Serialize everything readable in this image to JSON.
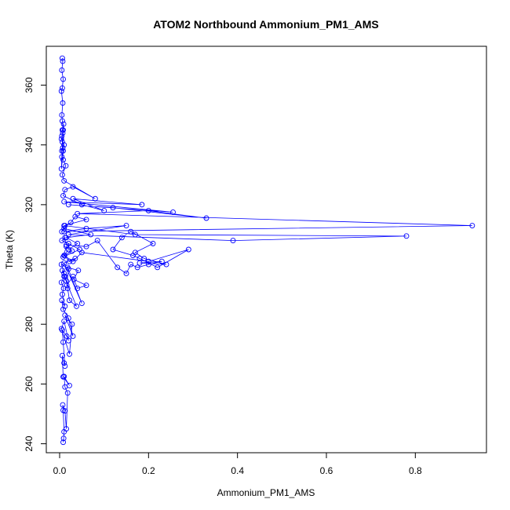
{
  "chart_data": {
    "type": "scatter",
    "title": "ATOM2 Northbound Ammonium_PM1_AMS",
    "xlabel": "Ammonium_PM1_AMS",
    "ylabel": "Theta (K)",
    "xlim": [
      -0.03,
      0.96
    ],
    "ylim": [
      237,
      373
    ],
    "xticks": [
      0.0,
      0.2,
      0.4,
      0.6,
      0.8
    ],
    "xtick_labels": [
      "0.0",
      "0.2",
      "0.4",
      "0.6",
      "0.8"
    ],
    "yticks": [
      240,
      260,
      280,
      300,
      320,
      340,
      360
    ],
    "ytick_labels": [
      "240",
      "260",
      "280",
      "300",
      "320",
      "340",
      "360"
    ],
    "grid": false,
    "legend": "none",
    "style": "points and connecting lines (type='b')",
    "colors": {
      "series": "#0000ff",
      "axis": "#000000",
      "background": "#ffffff"
    },
    "series": [
      {
        "values_x": [
          0.008,
          0.009,
          0.01,
          0.008,
          0.007,
          0.012,
          0.015,
          0.018,
          0.012,
          0.01,
          0.022,
          0.008,
          0.006,
          0.01,
          0.012,
          0.008,
          0.006,
          0.016,
          0.02,
          0.01,
          0.004,
          0.022,
          0.028,
          0.012,
          0.03,
          0.02,
          0.008,
          0.005,
          0.012,
          0.006,
          0.009,
          0.004,
          0.01,
          0.038,
          0.022,
          0.018,
          0.015,
          0.01,
          0.006,
          0.012,
          0.004,
          0.02,
          0.016,
          0.03,
          0.04,
          0.06,
          0.032,
          0.042,
          0.018,
          0.05,
          0.01,
          0.035,
          0.022,
          0.011,
          0.028,
          0.015,
          0.008,
          0.045,
          0.02,
          0.005,
          0.012,
          0.015,
          0.06,
          0.085,
          0.13,
          0.15,
          0.16,
          0.175,
          0.2,
          0.23,
          0.18,
          0.24,
          0.19,
          0.17,
          0.21,
          0.16,
          0.14,
          0.12,
          0.165,
          0.18,
          0.22,
          0.29,
          0.2,
          0.05,
          0.03,
          0.01,
          0.02,
          0.04,
          0.015,
          0.07,
          0.01,
          0.005,
          0.012,
          0.025,
          0.035,
          0.06,
          0.01,
          0.17,
          0.78,
          0.39,
          0.02,
          0.15,
          0.06,
          0.01,
          0.928,
          0.04,
          0.2,
          0.33,
          0.12,
          0.02,
          0.255,
          0.01,
          0.185,
          0.03,
          0.1,
          0.05,
          0.008,
          0.012,
          0.03,
          0.08,
          0.01,
          0.006,
          0.014,
          0.008,
          0.005,
          0.01,
          0.004,
          0.007,
          0.006,
          0.009,
          0.005,
          0.004,
          0.008,
          0.006,
          0.005,
          0.007,
          0.008,
          0.006,
          0.005,
          0.007,
          0.004,
          0.006,
          0.008,
          0.005,
          0.007,
          0.006
        ],
        "values_y": [
          240.5,
          241.8,
          244.0,
          251.2,
          253.0,
          251.0,
          245.0,
          257.0,
          259.0,
          262.5,
          259.5,
          262.4,
          269.5,
          267.0,
          266.0,
          274.0,
          278.0,
          276.0,
          274.5,
          281.0,
          278.5,
          270.0,
          280.0,
          283.0,
          276.0,
          282.0,
          285.0,
          288.0,
          286.0,
          290.0,
          292.0,
          294.0,
          296.0,
          286.0,
          288.0,
          292.0,
          294.5,
          297.0,
          298.0,
          296.0,
          300.0,
          298.5,
          293.0,
          296.0,
          292.0,
          293.0,
          295.0,
          298.0,
          299.0,
          287.0,
          300.5,
          302.0,
          301.0,
          303.0,
          304.5,
          306.0,
          302.5,
          305.0,
          307.0,
          308.0,
          309.0,
          306.5,
          306.0,
          308.0,
          299.0,
          297.0,
          300.0,
          299.0,
          300.0,
          301.0,
          300.5,
          300.0,
          302.0,
          304.0,
          307.0,
          311.0,
          309.0,
          305.0,
          303.0,
          302.0,
          299.0,
          305.0,
          301.0,
          304.0,
          301.0,
          303.0,
          305.0,
          307.0,
          309.0,
          310.0,
          312.0,
          311.0,
          313.0,
          314.0,
          316.0,
          315.0,
          313.0,
          310.0,
          309.5,
          308.0,
          310.0,
          313.0,
          312.0,
          311.0,
          313.0,
          317.0,
          318.0,
          315.5,
          319.0,
          320.0,
          317.5,
          321.0,
          320.0,
          322.0,
          318.0,
          320.0,
          323.0,
          325.0,
          326.0,
          322.0,
          328.0,
          330.0,
          333.0,
          335.0,
          338.0,
          340.0,
          342.0,
          344.0,
          345.0,
          347.0,
          336.0,
          332.0,
          338.0,
          341.0,
          343.0,
          339.0,
          345.0,
          348.0,
          350.0,
          354.0,
          358.0,
          359.0,
          362.0,
          365.0,
          368.0,
          369.0
        ]
      }
    ]
  }
}
